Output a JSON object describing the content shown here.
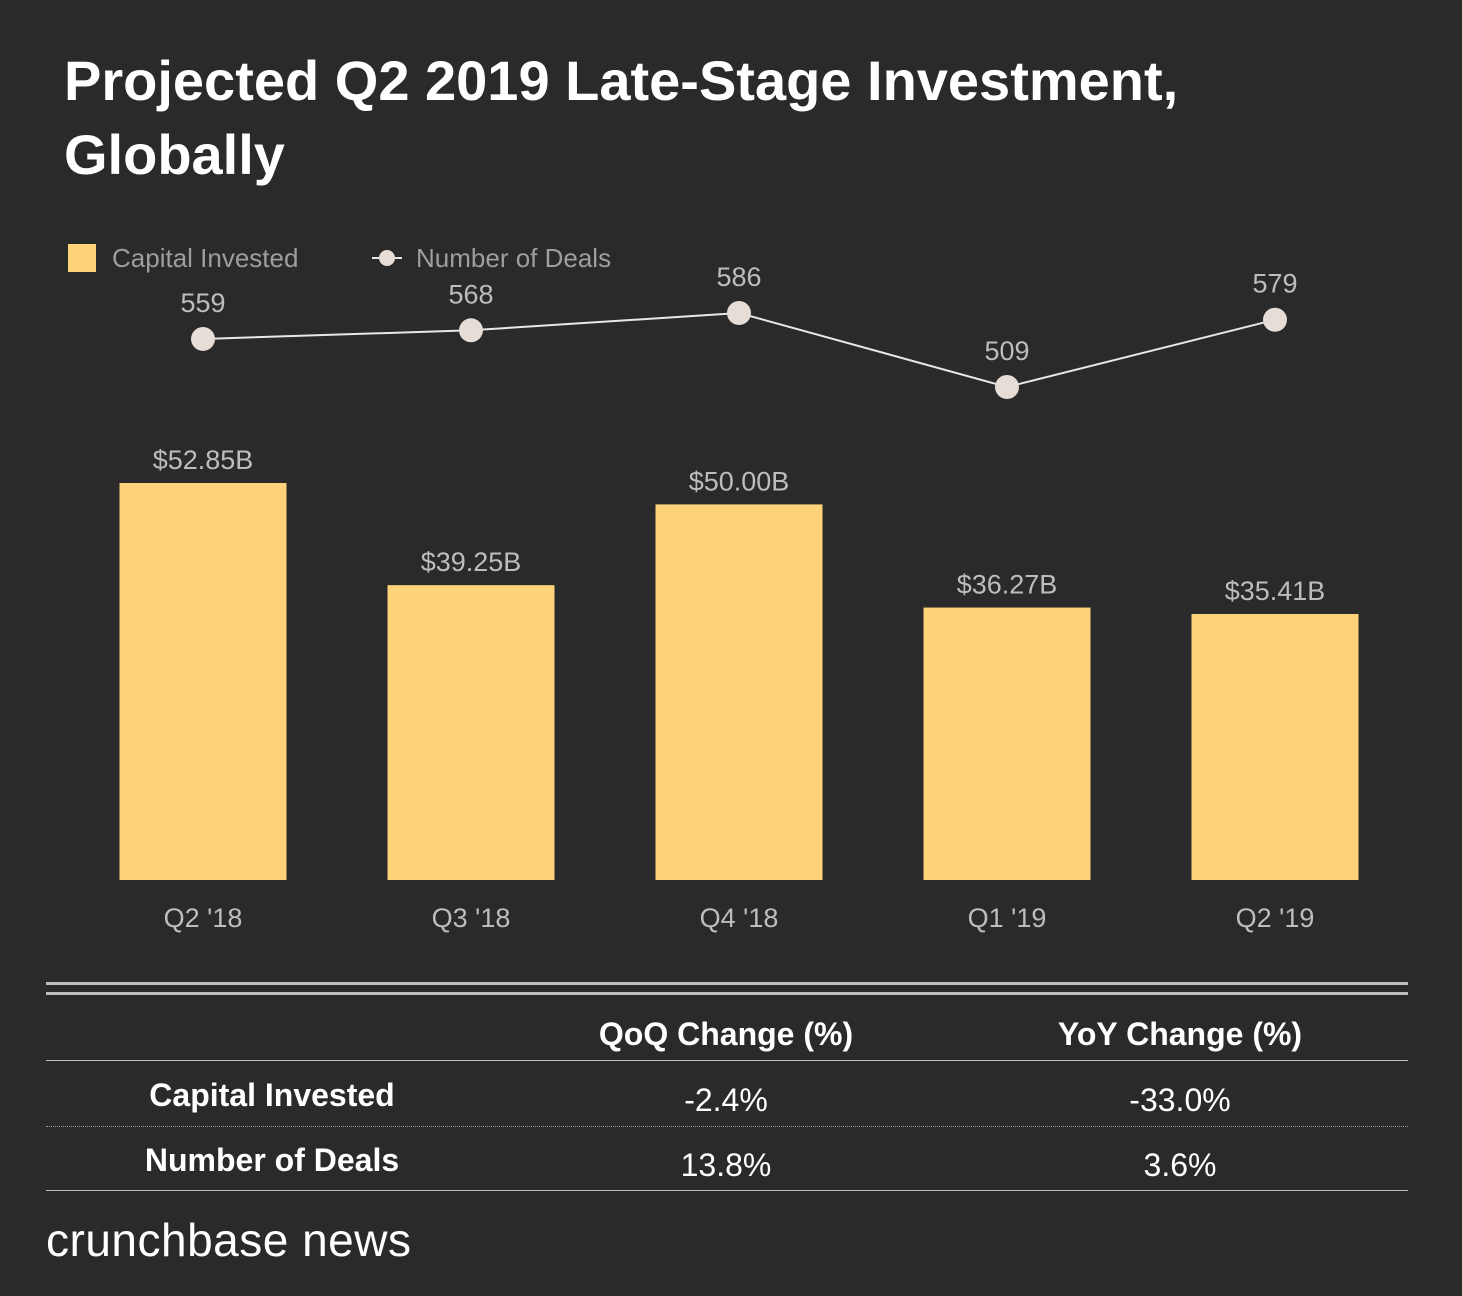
{
  "title": "Projected Q2 2019 Late-Stage Investment, Globally",
  "colors": {
    "background": "#2a2a2a",
    "bar": "#fed37a",
    "line": "#e8e8e8",
    "marker": "#e6ddd7",
    "text_muted": "#bdbdbd"
  },
  "chart_data": {
    "type": "bar",
    "categories": [
      "Q2 '18",
      "Q3 '18",
      "Q4 '18",
      "Q1 '19",
      "Q2 '19"
    ],
    "series": [
      {
        "name": "Capital Invested",
        "type": "bar",
        "values": [
          52.85,
          39.25,
          50.0,
          36.27,
          35.41
        ],
        "labels": [
          "$52.85B",
          "$39.25B",
          "$50.00B",
          "$36.27B",
          "$35.41B"
        ]
      },
      {
        "name": "Number of Deals",
        "type": "line",
        "values": [
          559,
          568,
          586,
          509,
          579
        ],
        "labels": [
          "559",
          "568",
          "586",
          "509",
          "579"
        ]
      }
    ],
    "legend": [
      "Capital Invested",
      "Number of Deals"
    ],
    "legend_position": "top-left",
    "ylim_bar": [
      0,
      60
    ],
    "grid": false
  },
  "table": {
    "headers": [
      "",
      "QoQ Change (%)",
      "YoY Change (%)"
    ],
    "rows": [
      {
        "label": "Capital Invested",
        "qoq": "-2.4%",
        "yoy": "-33.0%"
      },
      {
        "label": "Number of Deals",
        "qoq": "13.8%",
        "yoy": "3.6%"
      }
    ]
  },
  "footer": {
    "brand": "crunchbase news"
  }
}
